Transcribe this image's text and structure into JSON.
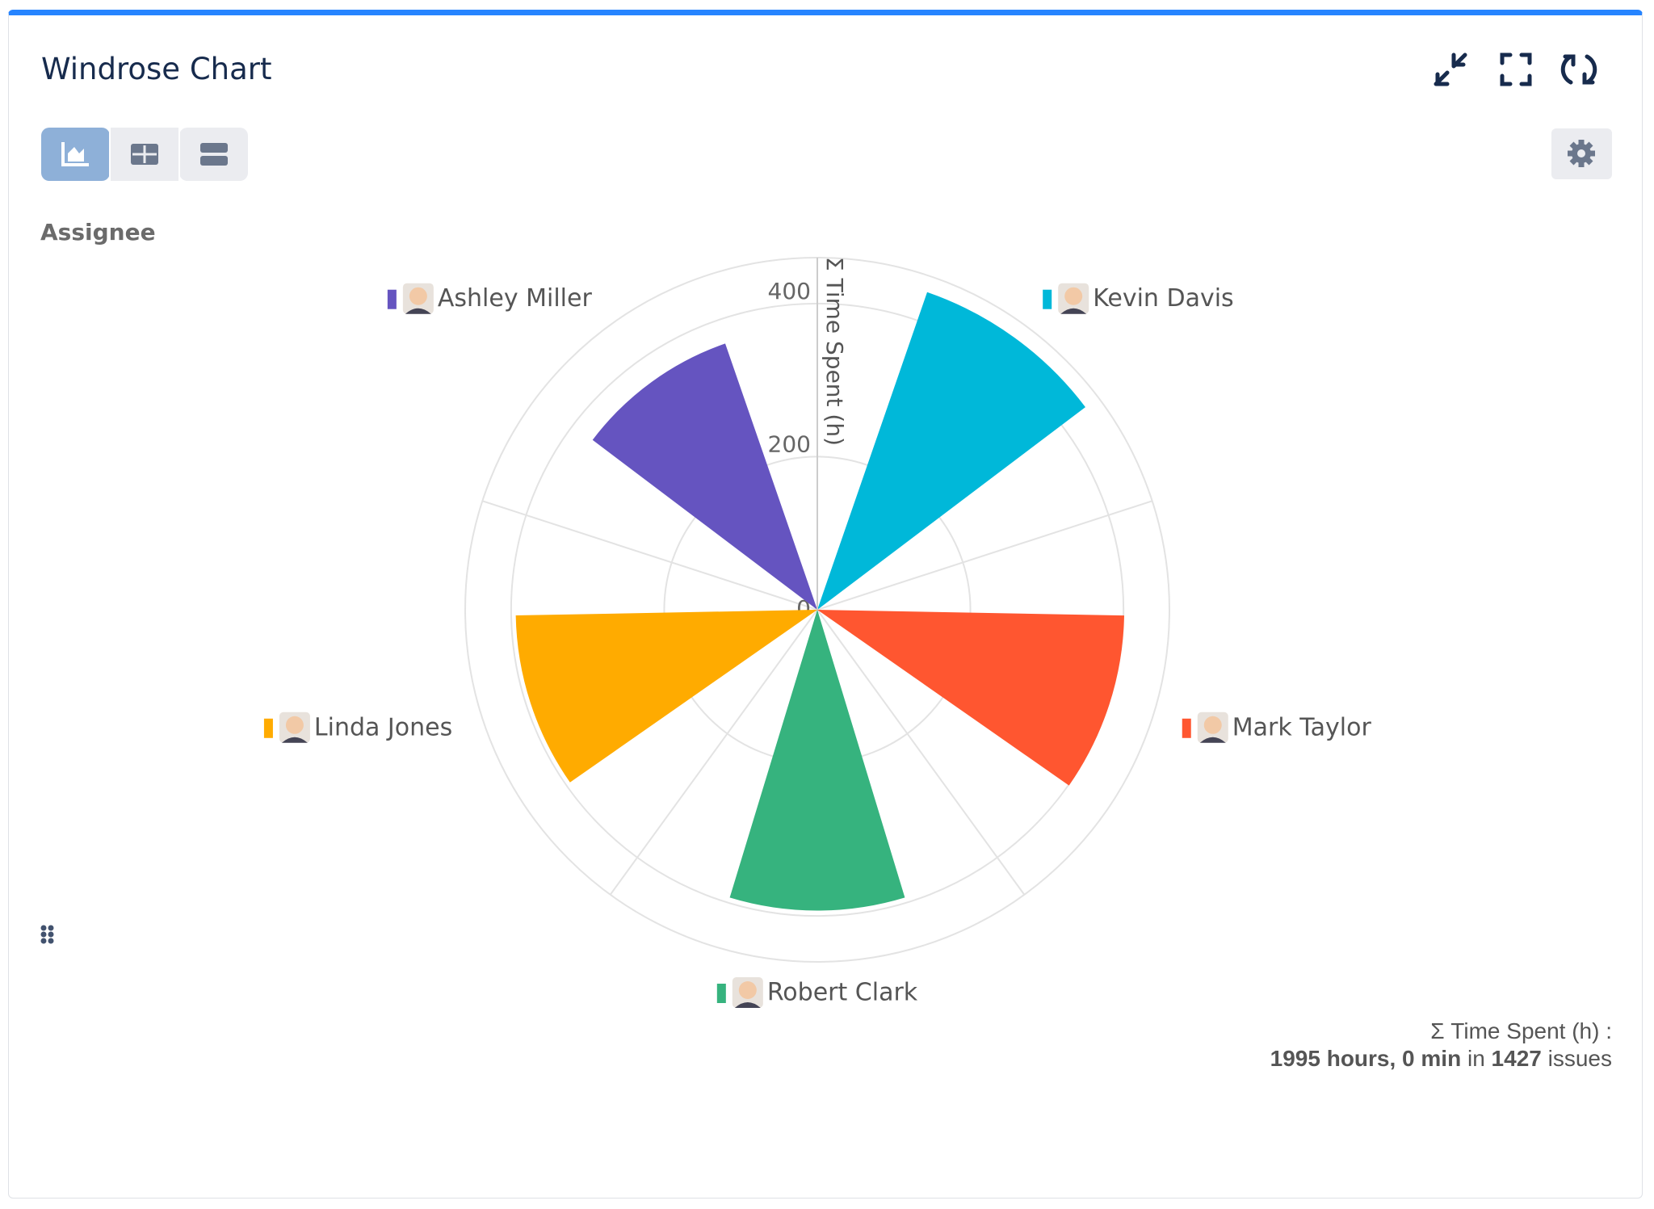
{
  "header": {
    "title": "Windrose Chart"
  },
  "chart_data": {
    "type": "windrose",
    "title": "Assignee",
    "axis_label": "Σ Time Spent (h)",
    "categories": [
      "Kevin Davis",
      "Mark Taylor",
      "Robert Clark",
      "Linda Jones",
      "Ashley Miller"
    ],
    "values": [
      439,
      401,
      393,
      394,
      368
    ],
    "colors": [
      "#00b8d9",
      "#ff5630",
      "#36b37e",
      "#ffab00",
      "#6554c0"
    ],
    "ylim": [
      0,
      460
    ],
    "yticks": [
      0,
      200,
      400
    ],
    "grid": true
  },
  "footer": {
    "label": "Σ Time Spent (h) :",
    "total": "1995 hours, 0 min",
    "joiner": "in",
    "count": "1427",
    "unit": "issues"
  }
}
